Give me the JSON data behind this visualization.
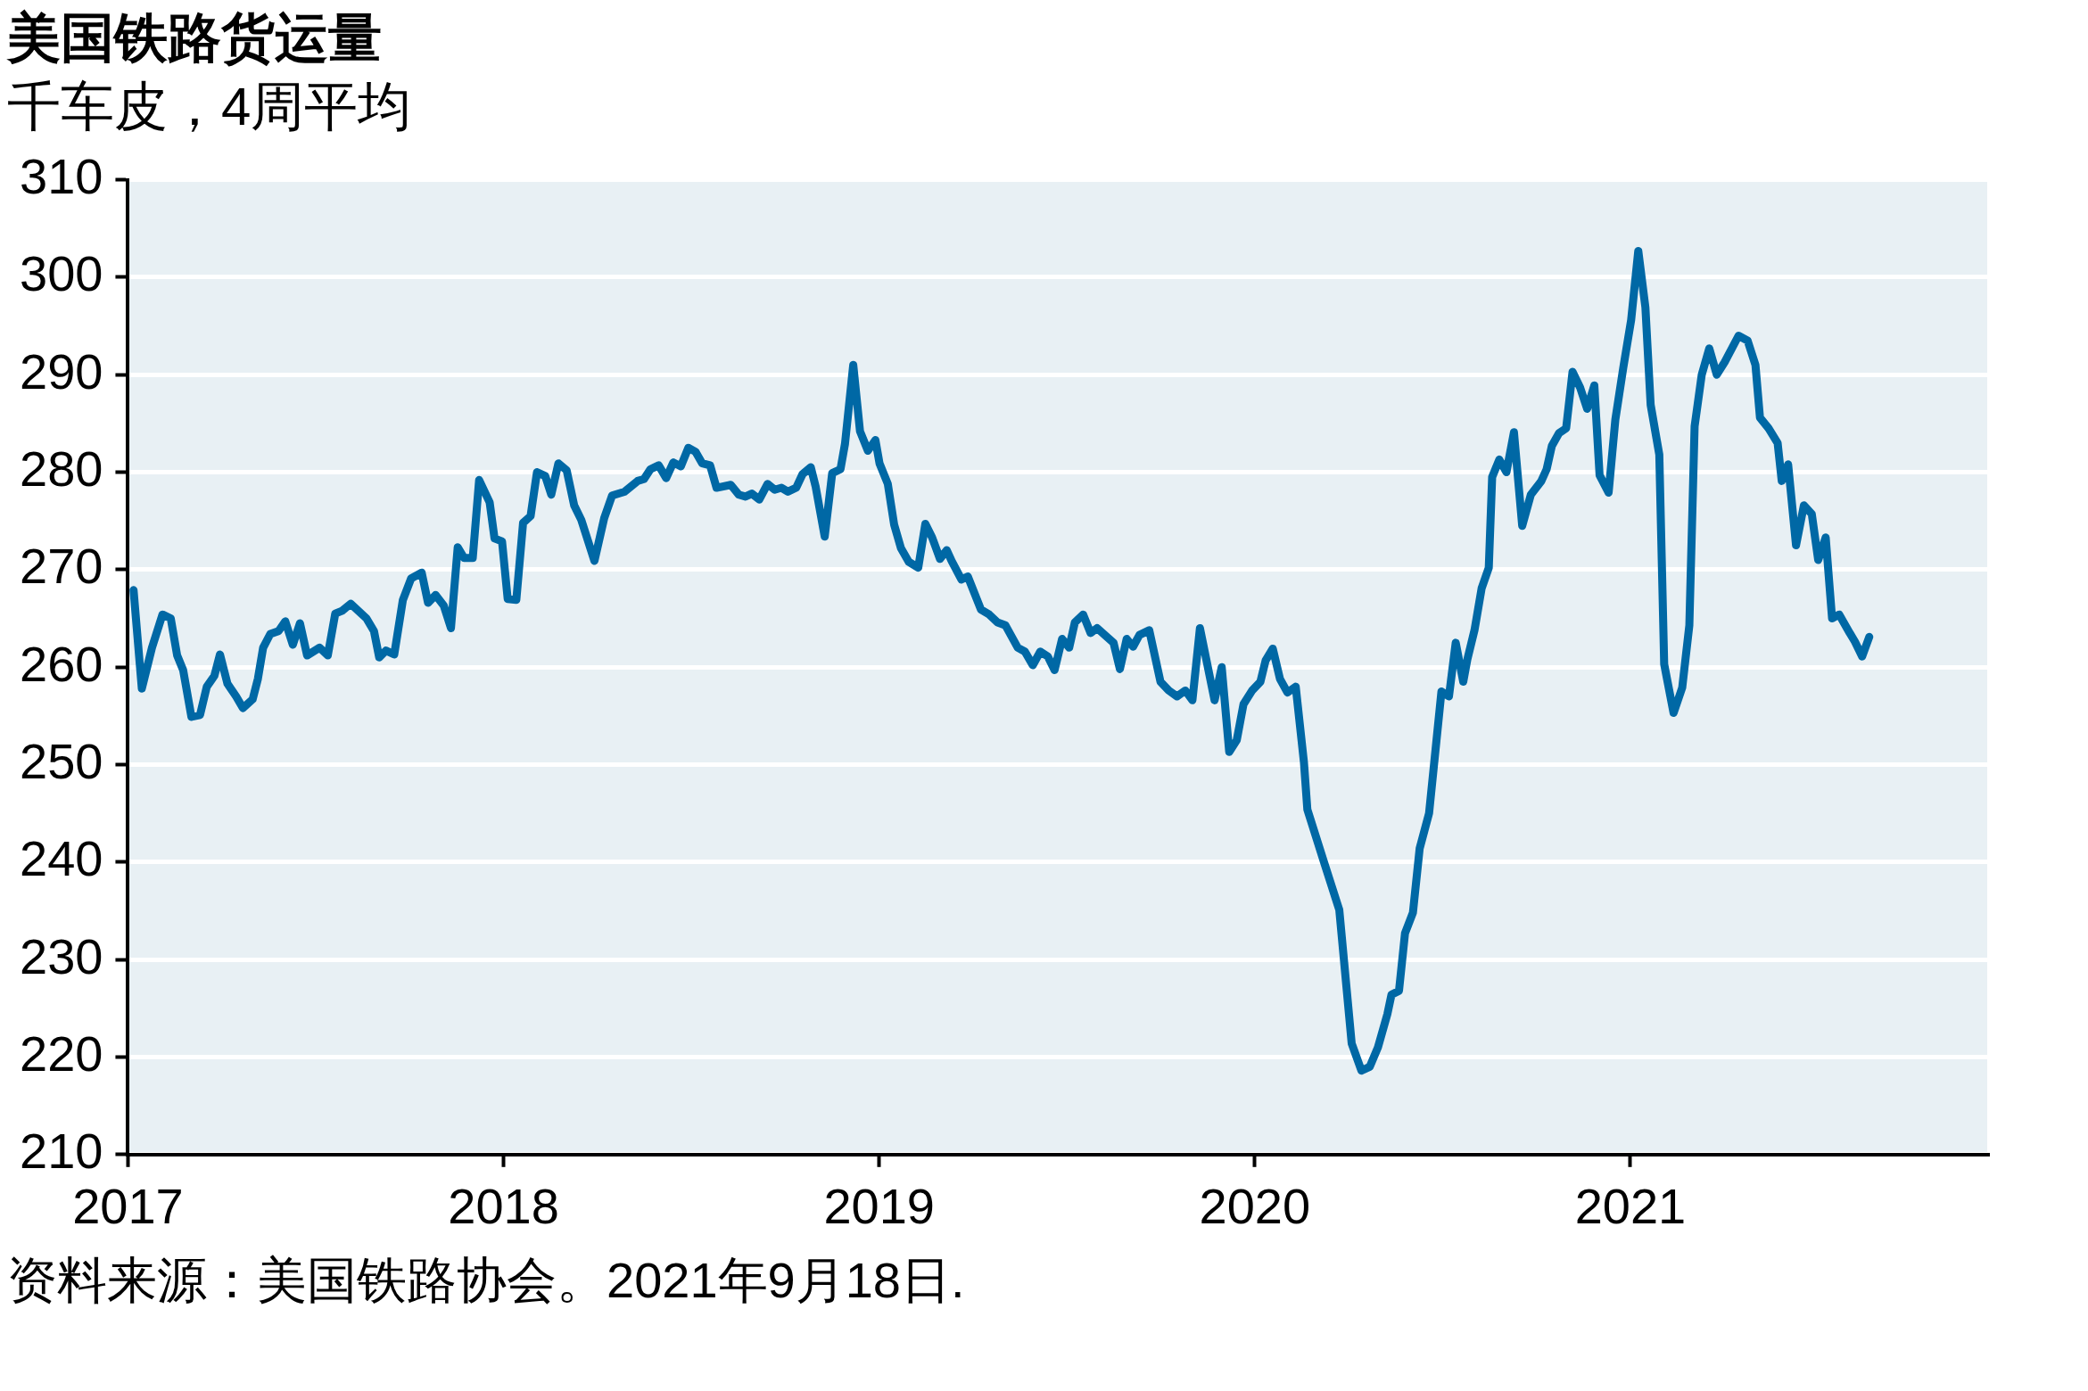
{
  "chart_data": {
    "type": "line",
    "title": "美国铁路货运量",
    "subtitle": "千车皮，4周平均",
    "annotations": [
      "资料来源：美国铁路协会。2021年9月18日."
    ],
    "x": [
      2017.015,
      2017.037,
      2017.064,
      2017.092,
      2017.114,
      2017.131,
      2017.147,
      2017.169,
      2017.192,
      2017.21,
      2017.23,
      2017.245,
      2017.265,
      2017.288,
      2017.306,
      2017.332,
      2017.346,
      2017.36,
      2017.379,
      2017.401,
      2017.419,
      2017.439,
      2017.458,
      2017.477,
      2017.51,
      2017.532,
      2017.552,
      2017.571,
      2017.593,
      2017.635,
      2017.655,
      2017.669,
      2017.687,
      2017.709,
      2017.732,
      2017.754,
      2017.782,
      2017.799,
      2017.819,
      2017.841,
      2017.86,
      2017.878,
      2017.895,
      2017.918,
      2017.935,
      2017.963,
      2017.976,
      2017.996,
      2018.011,
      2018.034,
      2018.052,
      2018.072,
      2018.089,
      2018.111,
      2018.127,
      2018.146,
      2018.168,
      2018.188,
      2018.207,
      2018.242,
      2018.268,
      2018.289,
      2018.322,
      2018.357,
      2018.374,
      2018.391,
      2018.413,
      2018.433,
      2018.452,
      2018.472,
      2018.492,
      2018.511,
      2018.529,
      2018.55,
      2018.567,
      2018.605,
      2018.626,
      2018.644,
      2018.661,
      2018.681,
      2018.703,
      2018.722,
      2018.74,
      2018.757,
      2018.779,
      2018.796,
      2018.818,
      2018.831,
      2018.855,
      2018.875,
      2018.897,
      2018.909,
      2018.931,
      2018.949,
      2018.97,
      2018.99,
      2019.001,
      2019.023,
      2019.04,
      2019.058,
      2019.079,
      2019.104,
      2019.123,
      2019.141,
      2019.162,
      2019.18,
      2019.193,
      2019.219,
      2019.236,
      2019.271,
      2019.293,
      2019.315,
      2019.336,
      2019.369,
      2019.388,
      2019.409,
      2019.429,
      2019.449,
      2019.467,
      2019.487,
      2019.506,
      2019.521,
      2019.543,
      2019.563,
      2019.58,
      2019.624,
      2019.641,
      2019.659,
      2019.676,
      2019.693,
      2019.719,
      2019.749,
      2019.771,
      2019.793,
      2019.815,
      2019.834,
      2019.854,
      2019.893,
      2019.912,
      2019.932,
      2019.952,
      2019.97,
      2019.993,
      2020.015,
      2020.029,
      2020.048,
      2020.067,
      2020.087,
      2020.109,
      2020.131,
      2020.14,
      2020.186,
      2020.225,
      2020.258,
      2020.284,
      2020.306,
      2020.328,
      2020.353,
      2020.364,
      2020.384,
      2020.4,
      2020.421,
      2020.439,
      2020.464,
      2020.497,
      2020.517,
      2020.535,
      2020.555,
      2020.566,
      2020.585,
      2020.604,
      2020.623,
      2020.632,
      2020.651,
      2020.67,
      2020.69,
      2020.712,
      2020.735,
      2020.763,
      2020.777,
      2020.791,
      2020.81,
      2020.829,
      2020.846,
      2020.866,
      2020.885,
      2020.904,
      2020.918,
      2020.942,
      2020.96,
      2020.981,
      2021.002,
      2021.021,
      2021.04,
      2021.054,
      2021.077,
      2021.09,
      2021.115,
      2021.138,
      2021.157,
      2021.171,
      2021.19,
      2021.21,
      2021.23,
      2021.251,
      2021.288,
      2021.312,
      2021.333,
      2021.345,
      2021.368,
      2021.392,
      2021.403,
      2021.42,
      2021.441,
      2021.462,
      2021.483,
      2021.5,
      2021.52,
      2021.537,
      2021.556,
      2021.584,
      2021.598,
      2021.617,
      2021.636
    ],
    "series": [
      {
        "color": "#0068a5",
        "values": [
          267.9,
          257.8,
          262.0,
          265.4,
          265.0,
          261.2,
          259.7,
          254.9,
          255.1,
          258.0,
          259.1,
          261.3,
          258.3,
          257.0,
          255.8,
          256.7,
          258.8,
          262.0,
          263.4,
          263.7,
          264.7,
          262.3,
          264.5,
          261.2,
          262.0,
          261.2,
          265.5,
          265.8,
          266.5,
          265.0,
          263.7,
          261.0,
          261.7,
          261.3,
          266.9,
          269.1,
          269.7,
          266.6,
          267.4,
          266.3,
          264.0,
          272.3,
          271.2,
          271.2,
          279.2,
          276.9,
          273.2,
          272.9,
          267.0,
          266.9,
          274.8,
          275.5,
          280.0,
          279.6,
          277.7,
          280.9,
          280.2,
          276.6,
          275.1,
          270.9,
          275.3,
          277.6,
          278.0,
          279.1,
          279.3,
          280.3,
          280.7,
          279.4,
          281.0,
          280.6,
          282.5,
          282.1,
          280.9,
          280.7,
          278.4,
          278.7,
          277.7,
          277.5,
          277.8,
          277.2,
          278.8,
          278.2,
          278.4,
          278.0,
          278.4,
          279.8,
          280.5,
          278.5,
          273.4,
          279.9,
          280.3,
          282.9,
          291.0,
          284.2,
          282.2,
          283.3,
          280.9,
          278.8,
          274.6,
          272.2,
          270.8,
          270.2,
          274.7,
          273.3,
          271.1,
          272.0,
          270.9,
          269.0,
          269.3,
          265.9,
          265.4,
          264.6,
          264.3,
          262.0,
          261.6,
          260.2,
          261.6,
          261.1,
          259.7,
          262.9,
          262.0,
          264.6,
          265.4,
          263.5,
          264.0,
          262.5,
          259.8,
          262.9,
          262.1,
          263.3,
          263.8,
          258.5,
          257.6,
          257.0,
          257.6,
          256.6,
          264.0,
          256.6,
          260.0,
          251.3,
          252.5,
          256.2,
          257.6,
          258.5,
          260.7,
          261.9,
          258.8,
          257.4,
          258.0,
          250.2,
          245.4,
          239.8,
          235.1,
          221.4,
          218.6,
          219.0,
          221.0,
          224.4,
          226.4,
          226.8,
          232.7,
          234.8,
          241.4,
          245.0,
          257.5,
          257.0,
          262.5,
          258.5,
          260.8,
          263.8,
          268.1,
          270.2,
          279.5,
          281.3,
          280.0,
          284.1,
          274.5,
          277.7,
          279.1,
          280.3,
          282.7,
          284.0,
          284.5,
          290.3,
          288.7,
          286.5,
          288.9,
          279.7,
          277.9,
          285.4,
          290.7,
          295.6,
          302.7,
          296.9,
          286.9,
          281.8,
          260.3,
          255.3,
          257.9,
          264.3,
          284.7,
          290.0,
          292.7,
          290.0,
          291.3,
          294.0,
          293.5,
          291.0,
          285.6,
          284.5,
          283.0,
          279.1,
          280.8,
          272.5,
          276.6,
          275.7,
          271.0,
          273.3,
          265.0,
          265.4,
          263.5,
          262.6,
          261.1,
          263.1
        ]
      }
    ],
    "xlim": [
      2017,
      2021.95
    ],
    "xticks": [
      2017,
      2018,
      2019,
      2020,
      2021
    ],
    "ylim": [
      210,
      310
    ],
    "yticks": [
      210,
      220,
      230,
      240,
      250,
      260,
      270,
      280,
      290,
      300,
      310
    ],
    "grid": "y",
    "marker": "none",
    "line_style": "solid"
  }
}
